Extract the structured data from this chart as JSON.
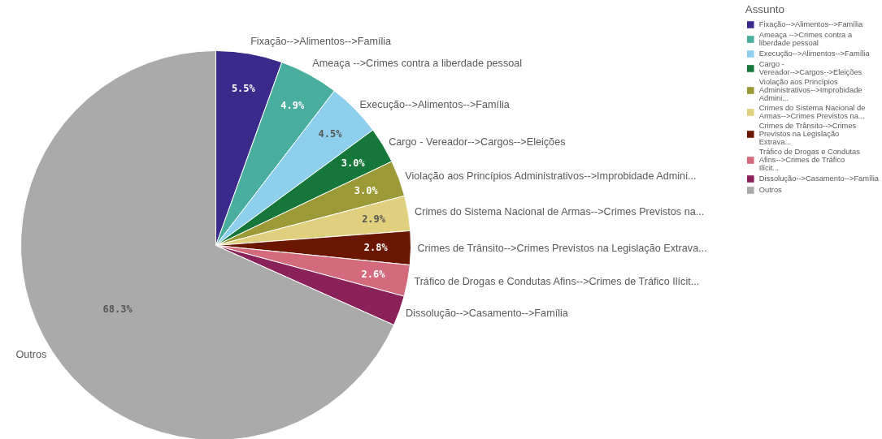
{
  "chart_data": {
    "type": "pie",
    "legend_title": "Assunto",
    "legend": "top right",
    "categories": [
      "Fixação-->Alimentos-->Família",
      "Ameaça -->Crimes contra a liberdade pessoal",
      "Execução-->Alimentos-->Família",
      "Cargo - Vereador-->Cargos-->Eleições",
      "Violação aos Princípios Administrativos-->Improbidade Admini...",
      "Crimes do Sistema Nacional de Armas-->Crimes Previstos na...",
      "Crimes de Trânsito-->Crimes Previstos na Legislação Extrava...",
      "Tráfico de Drogas e Condutas Afins-->Crimes de Tráfico Ilícit...",
      "Dissolução-->Casamento-->Família",
      "Outros"
    ],
    "values": [
      5.5,
      4.9,
      4.5,
      3.0,
      3.0,
      2.9,
      2.8,
      2.6,
      2.5,
      68.3
    ],
    "value_labels": [
      "5.5%",
      "4.9%",
      "4.5%",
      "3.0%",
      "3.0%",
      "2.9%",
      "2.8%",
      "2.6%",
      null,
      "68.3%"
    ],
    "colors": [
      "#3a2a8c",
      "#4aae9e",
      "#8ecfee",
      "#15773a",
      "#9c9a36",
      "#e0cf7c",
      "#6b1600",
      "#d46b7c",
      "#8a2259",
      "#aaaaaa"
    ]
  }
}
